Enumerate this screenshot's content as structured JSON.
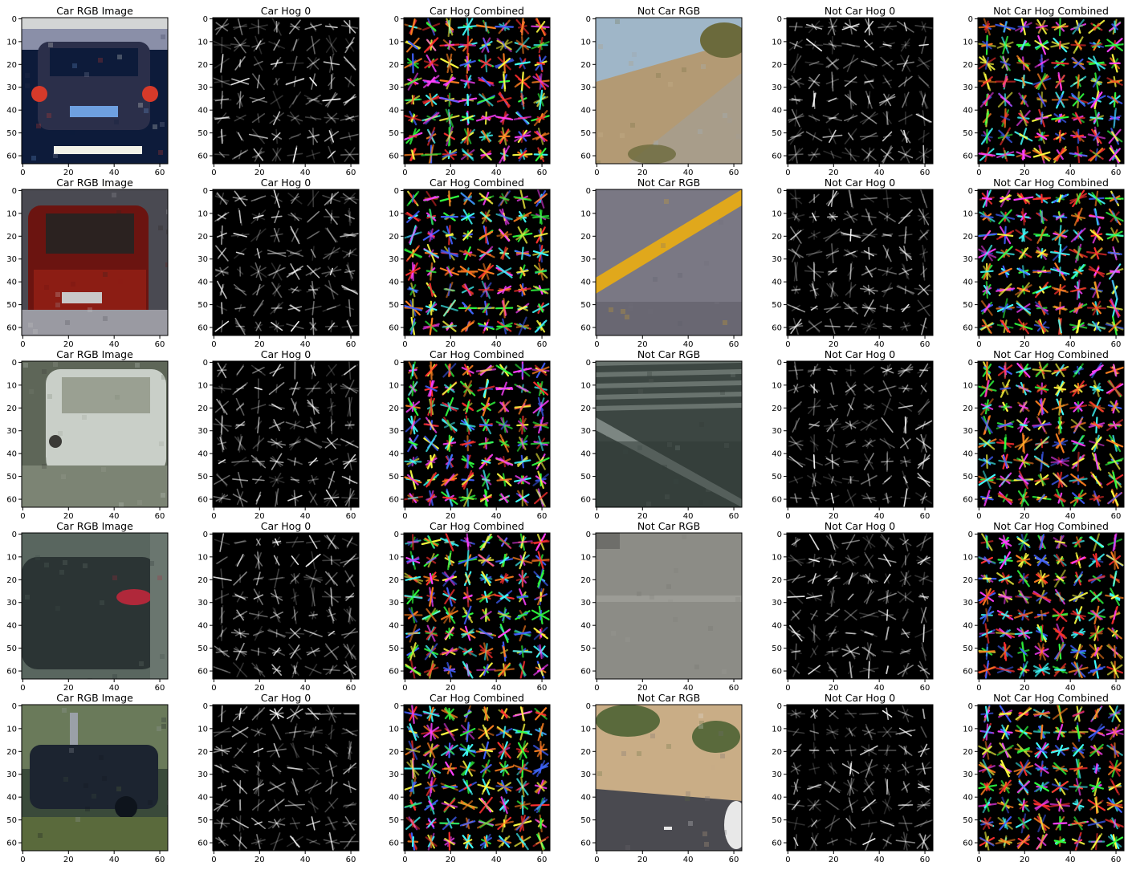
{
  "figure": {
    "rows": 5,
    "cols": 6,
    "axes_style": {
      "frame_color": "#000000",
      "title_color": "#000000",
      "tick_color": "#000000"
    }
  },
  "chart_data": {
    "type": "image-grid",
    "column_titles": [
      "Car RGB Image",
      "Car Hog 0",
      "Car Hog Combined",
      "Not Car RGB",
      "Not Car Hog 0",
      "Not Car Hog Combined"
    ],
    "xticks": [
      0,
      20,
      40,
      60
    ],
    "yticks": [
      0,
      10,
      20,
      30,
      40,
      50,
      60
    ],
    "xlim": [
      -0.5,
      63.5
    ],
    "ylim": [
      63.5,
      -0.5
    ],
    "panels": [
      {
        "row": 0,
        "title": "Car RGB Image",
        "kind": "rgb",
        "scene": "car-rear-night",
        "palette": [
          "#0d1b3a",
          "#2b2f4a",
          "#8a8fa8",
          "#d63a2a",
          "#6ea0e0",
          "#f2f2e8"
        ]
      },
      {
        "row": 0,
        "title": "Car Hog 0",
        "kind": "hog",
        "variant": 1
      },
      {
        "row": 0,
        "title": "Car Hog Combined",
        "kind": "hog-color",
        "variant": 1
      },
      {
        "row": 0,
        "title": "Not Car RGB",
        "kind": "rgb",
        "scene": "hillside",
        "palette": [
          "#9fb6c8",
          "#b39a74",
          "#cdb78f",
          "#6b6a3c",
          "#a0a09a"
        ]
      },
      {
        "row": 0,
        "title": "Not Car Hog 0",
        "kind": "hog",
        "variant": 2
      },
      {
        "row": 0,
        "title": "Not Car Hog Combined",
        "kind": "hog-color",
        "variant": 2
      },
      {
        "row": 1,
        "title": "Car RGB Image",
        "kind": "rgb",
        "scene": "red-car",
        "palette": [
          "#6b1410",
          "#8c1d14",
          "#2b2220",
          "#9a9aa2",
          "#c8c8c8",
          "#4a4a52"
        ]
      },
      {
        "row": 1,
        "title": "Car Hog 0",
        "kind": "hog",
        "variant": 3
      },
      {
        "row": 1,
        "title": "Car Hog Combined",
        "kind": "hog-color",
        "variant": 3
      },
      {
        "row": 1,
        "title": "Not Car RGB",
        "kind": "rgb",
        "scene": "road-yellow-line",
        "palette": [
          "#6f6c78",
          "#7a7884",
          "#e0a81c",
          "#5d5b66"
        ]
      },
      {
        "row": 1,
        "title": "Not Car Hog 0",
        "kind": "hog",
        "variant": 4
      },
      {
        "row": 1,
        "title": "Not Car Hog Combined",
        "kind": "hog-color",
        "variant": 4
      },
      {
        "row": 2,
        "title": "Car RGB Image",
        "kind": "rgb",
        "scene": "white-car",
        "palette": [
          "#7c8474",
          "#c9cfc8",
          "#3a3a36",
          "#5e6658",
          "#9aa092"
        ]
      },
      {
        "row": 2,
        "title": "Car Hog 0",
        "kind": "hog",
        "variant": 5
      },
      {
        "row": 2,
        "title": "Car Hog Combined",
        "kind": "hog-color",
        "variant": 5
      },
      {
        "row": 2,
        "title": "Not Car RGB",
        "kind": "rgb",
        "scene": "road-lines",
        "palette": [
          "#3c4642",
          "#7c8682",
          "#56605c",
          "#2e3834"
        ]
      },
      {
        "row": 2,
        "title": "Not Car Hog 0",
        "kind": "hog",
        "variant": 6
      },
      {
        "row": 2,
        "title": "Not Car Hog Combined",
        "kind": "hog-color",
        "variant": 6
      },
      {
        "row": 3,
        "title": "Car RGB Image",
        "kind": "rgb",
        "scene": "dark-car",
        "palette": [
          "#3e4a48",
          "#59665f",
          "#b0283a",
          "#2b3434",
          "#6a766f"
        ]
      },
      {
        "row": 3,
        "title": "Car Hog 0",
        "kind": "hog",
        "variant": 7
      },
      {
        "row": 3,
        "title": "Car Hog Combined",
        "kind": "hog-color",
        "variant": 7
      },
      {
        "row": 3,
        "title": "Not Car RGB",
        "kind": "rgb",
        "scene": "grey-road",
        "palette": [
          "#7a7a76",
          "#8c8c86",
          "#9c9c96",
          "#6e6e6a"
        ]
      },
      {
        "row": 3,
        "title": "Not Car Hog 0",
        "kind": "hog",
        "variant": 8
      },
      {
        "row": 3,
        "title": "Not Car Hog Combined",
        "kind": "hog-color",
        "variant": 8
      },
      {
        "row": 4,
        "title": "Car RGB Image",
        "kind": "rgb",
        "scene": "suv-trees",
        "palette": [
          "#1c2430",
          "#3a4a3a",
          "#6a7a5a",
          "#9aa0a8",
          "#0e141c",
          "#5a6a3c"
        ]
      },
      {
        "row": 4,
        "title": "Car Hog 0",
        "kind": "hog",
        "variant": 9
      },
      {
        "row": 4,
        "title": "Car Hog Combined",
        "kind": "hog-color",
        "variant": 9
      },
      {
        "row": 4,
        "title": "Not Car RGB",
        "kind": "rgb",
        "scene": "road-dirt",
        "palette": [
          "#c9ad86",
          "#6e6a70",
          "#4a4a50",
          "#5a6a3c",
          "#e8e8e8"
        ]
      },
      {
        "row": 4,
        "title": "Not Car Hog 0",
        "kind": "hog",
        "variant": 10
      },
      {
        "row": 4,
        "title": "Not Car Hog Combined",
        "kind": "hog-color",
        "variant": 10
      }
    ]
  }
}
